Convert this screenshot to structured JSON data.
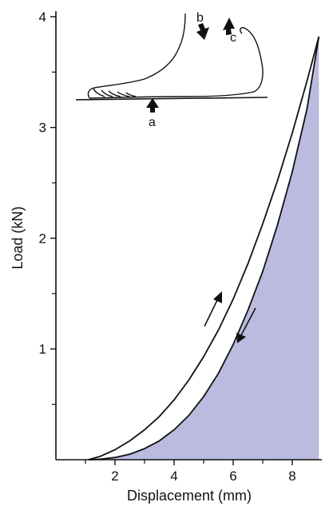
{
  "chart_data": {
    "type": "line",
    "title": "",
    "xlabel": "Displacement (mm)",
    "ylabel": "Load (kN)",
    "xlim": [
      0.0,
      9.0
    ],
    "ylim": [
      0,
      4.05
    ],
    "xticks": [
      2,
      4,
      6,
      8
    ],
    "yticks": [
      1,
      2,
      3,
      4
    ],
    "xtick_labels": [
      "2",
      "4",
      "6",
      "8"
    ],
    "ytick_labels": [
      "1",
      "2",
      "3",
      "4"
    ],
    "grid": false,
    "legend": "none",
    "series": [
      {
        "direction": "loading",
        "color": "#111111",
        "x": [
          1.1,
          1.5,
          2.0,
          2.5,
          3.0,
          3.5,
          4.0,
          4.5,
          5.0,
          5.5,
          6.0,
          6.5,
          7.0,
          7.5,
          8.0,
          8.5,
          8.8,
          8.9
        ],
        "y": [
          0.0,
          0.03,
          0.09,
          0.17,
          0.27,
          0.39,
          0.54,
          0.72,
          0.93,
          1.17,
          1.45,
          1.77,
          2.13,
          2.52,
          2.95,
          3.42,
          3.72,
          3.82
        ]
      },
      {
        "direction": "unloading",
        "color": "#111111",
        "fill": "#babbdf",
        "x": [
          8.9,
          8.5,
          8.0,
          7.5,
          7.0,
          6.5,
          6.0,
          5.5,
          5.0,
          4.5,
          4.0,
          3.5,
          3.0,
          2.5,
          2.0,
          1.5,
          1.1
        ],
        "y": [
          3.82,
          3.17,
          2.6,
          2.12,
          1.7,
          1.35,
          1.04,
          0.78,
          0.57,
          0.4,
          0.27,
          0.17,
          0.1,
          0.05,
          0.02,
          0.005,
          0.0
        ]
      }
    ],
    "annotations": {
      "loading_arrow_color": "#111111",
      "unloading_arrow_color": "#111111",
      "inset_labels": [
        "a",
        "b",
        "c"
      ]
    }
  }
}
